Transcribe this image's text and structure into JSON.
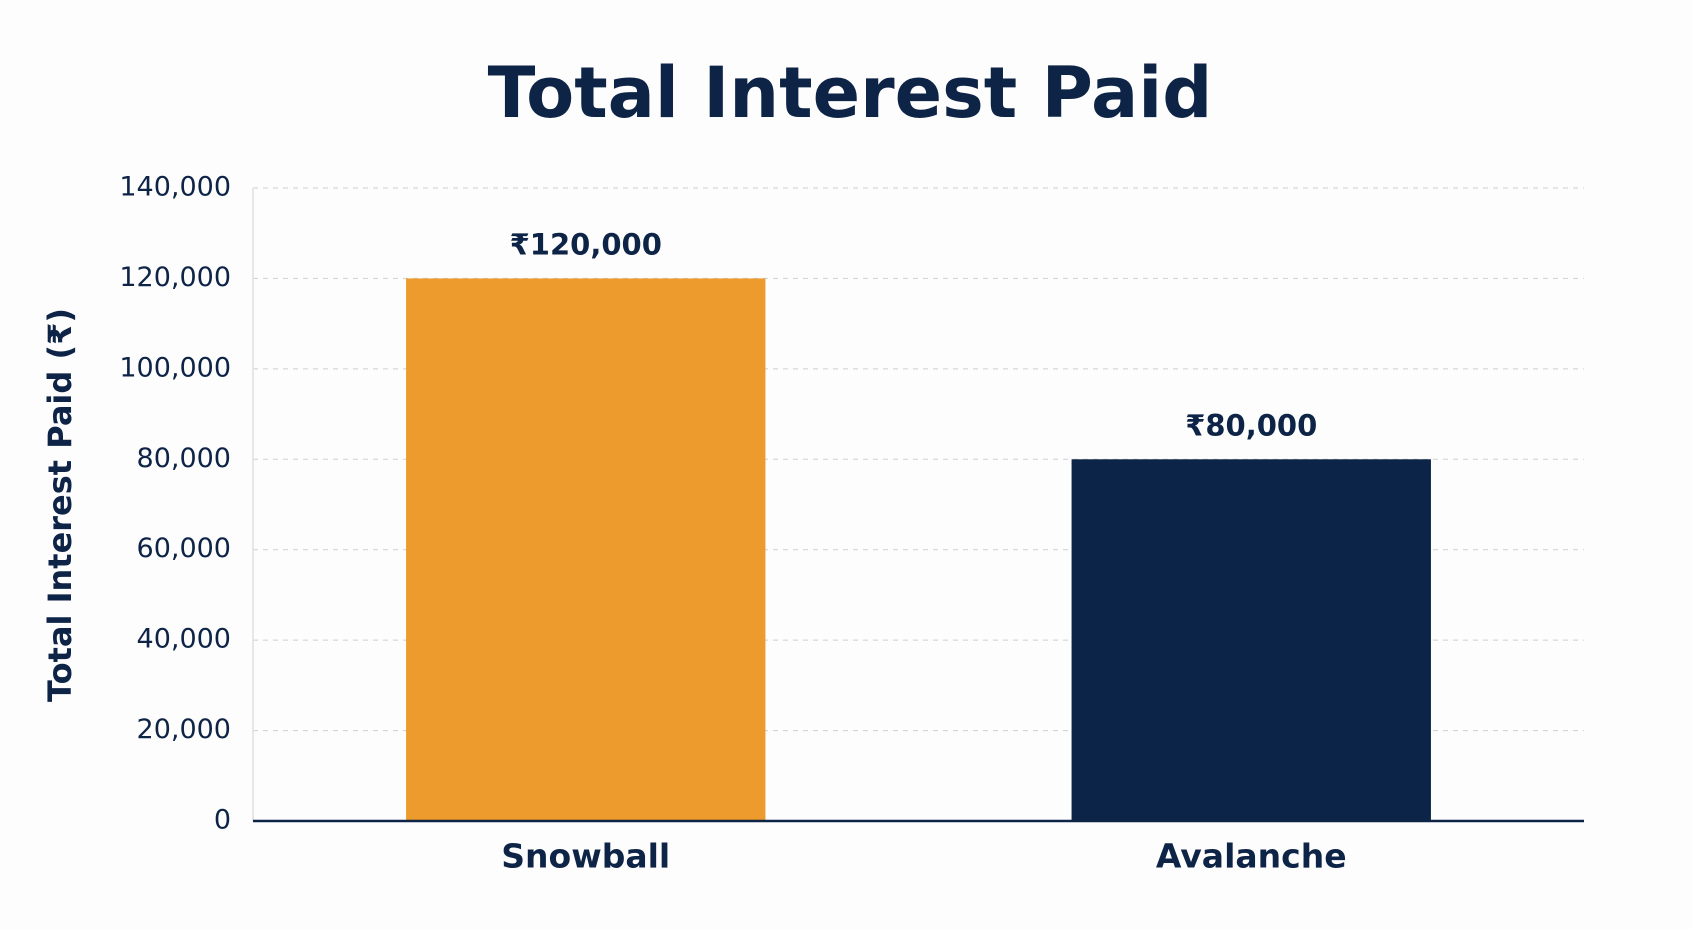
{
  "chart_data": {
    "type": "bar",
    "title": "Total Interest Paid",
    "y_label": "Total Interest Paid (₹)",
    "categories": [
      "Snowball",
      "Avalanche"
    ],
    "values": [
      120000,
      80000
    ],
    "value_labels": [
      "₹120,000",
      "₹80,000"
    ],
    "colors": [
      "#ec9b2c",
      "#0b2447"
    ],
    "ylim": [
      0,
      140000
    ],
    "yticks": [
      0,
      {
        "value": 20000,
        "label": "20,000"
      },
      {
        "value": 40000,
        "label": "40,000"
      },
      {
        "value": 60000,
        "label": "60,000"
      },
      {
        "value": 80000,
        "label": "80,000"
      },
      {
        "value": 100000,
        "label": "100,000"
      },
      {
        "value": 120000,
        "label": "120,000"
      },
      {
        "value": 140000,
        "label": "140,000"
      }
    ],
    "grid": true
  }
}
